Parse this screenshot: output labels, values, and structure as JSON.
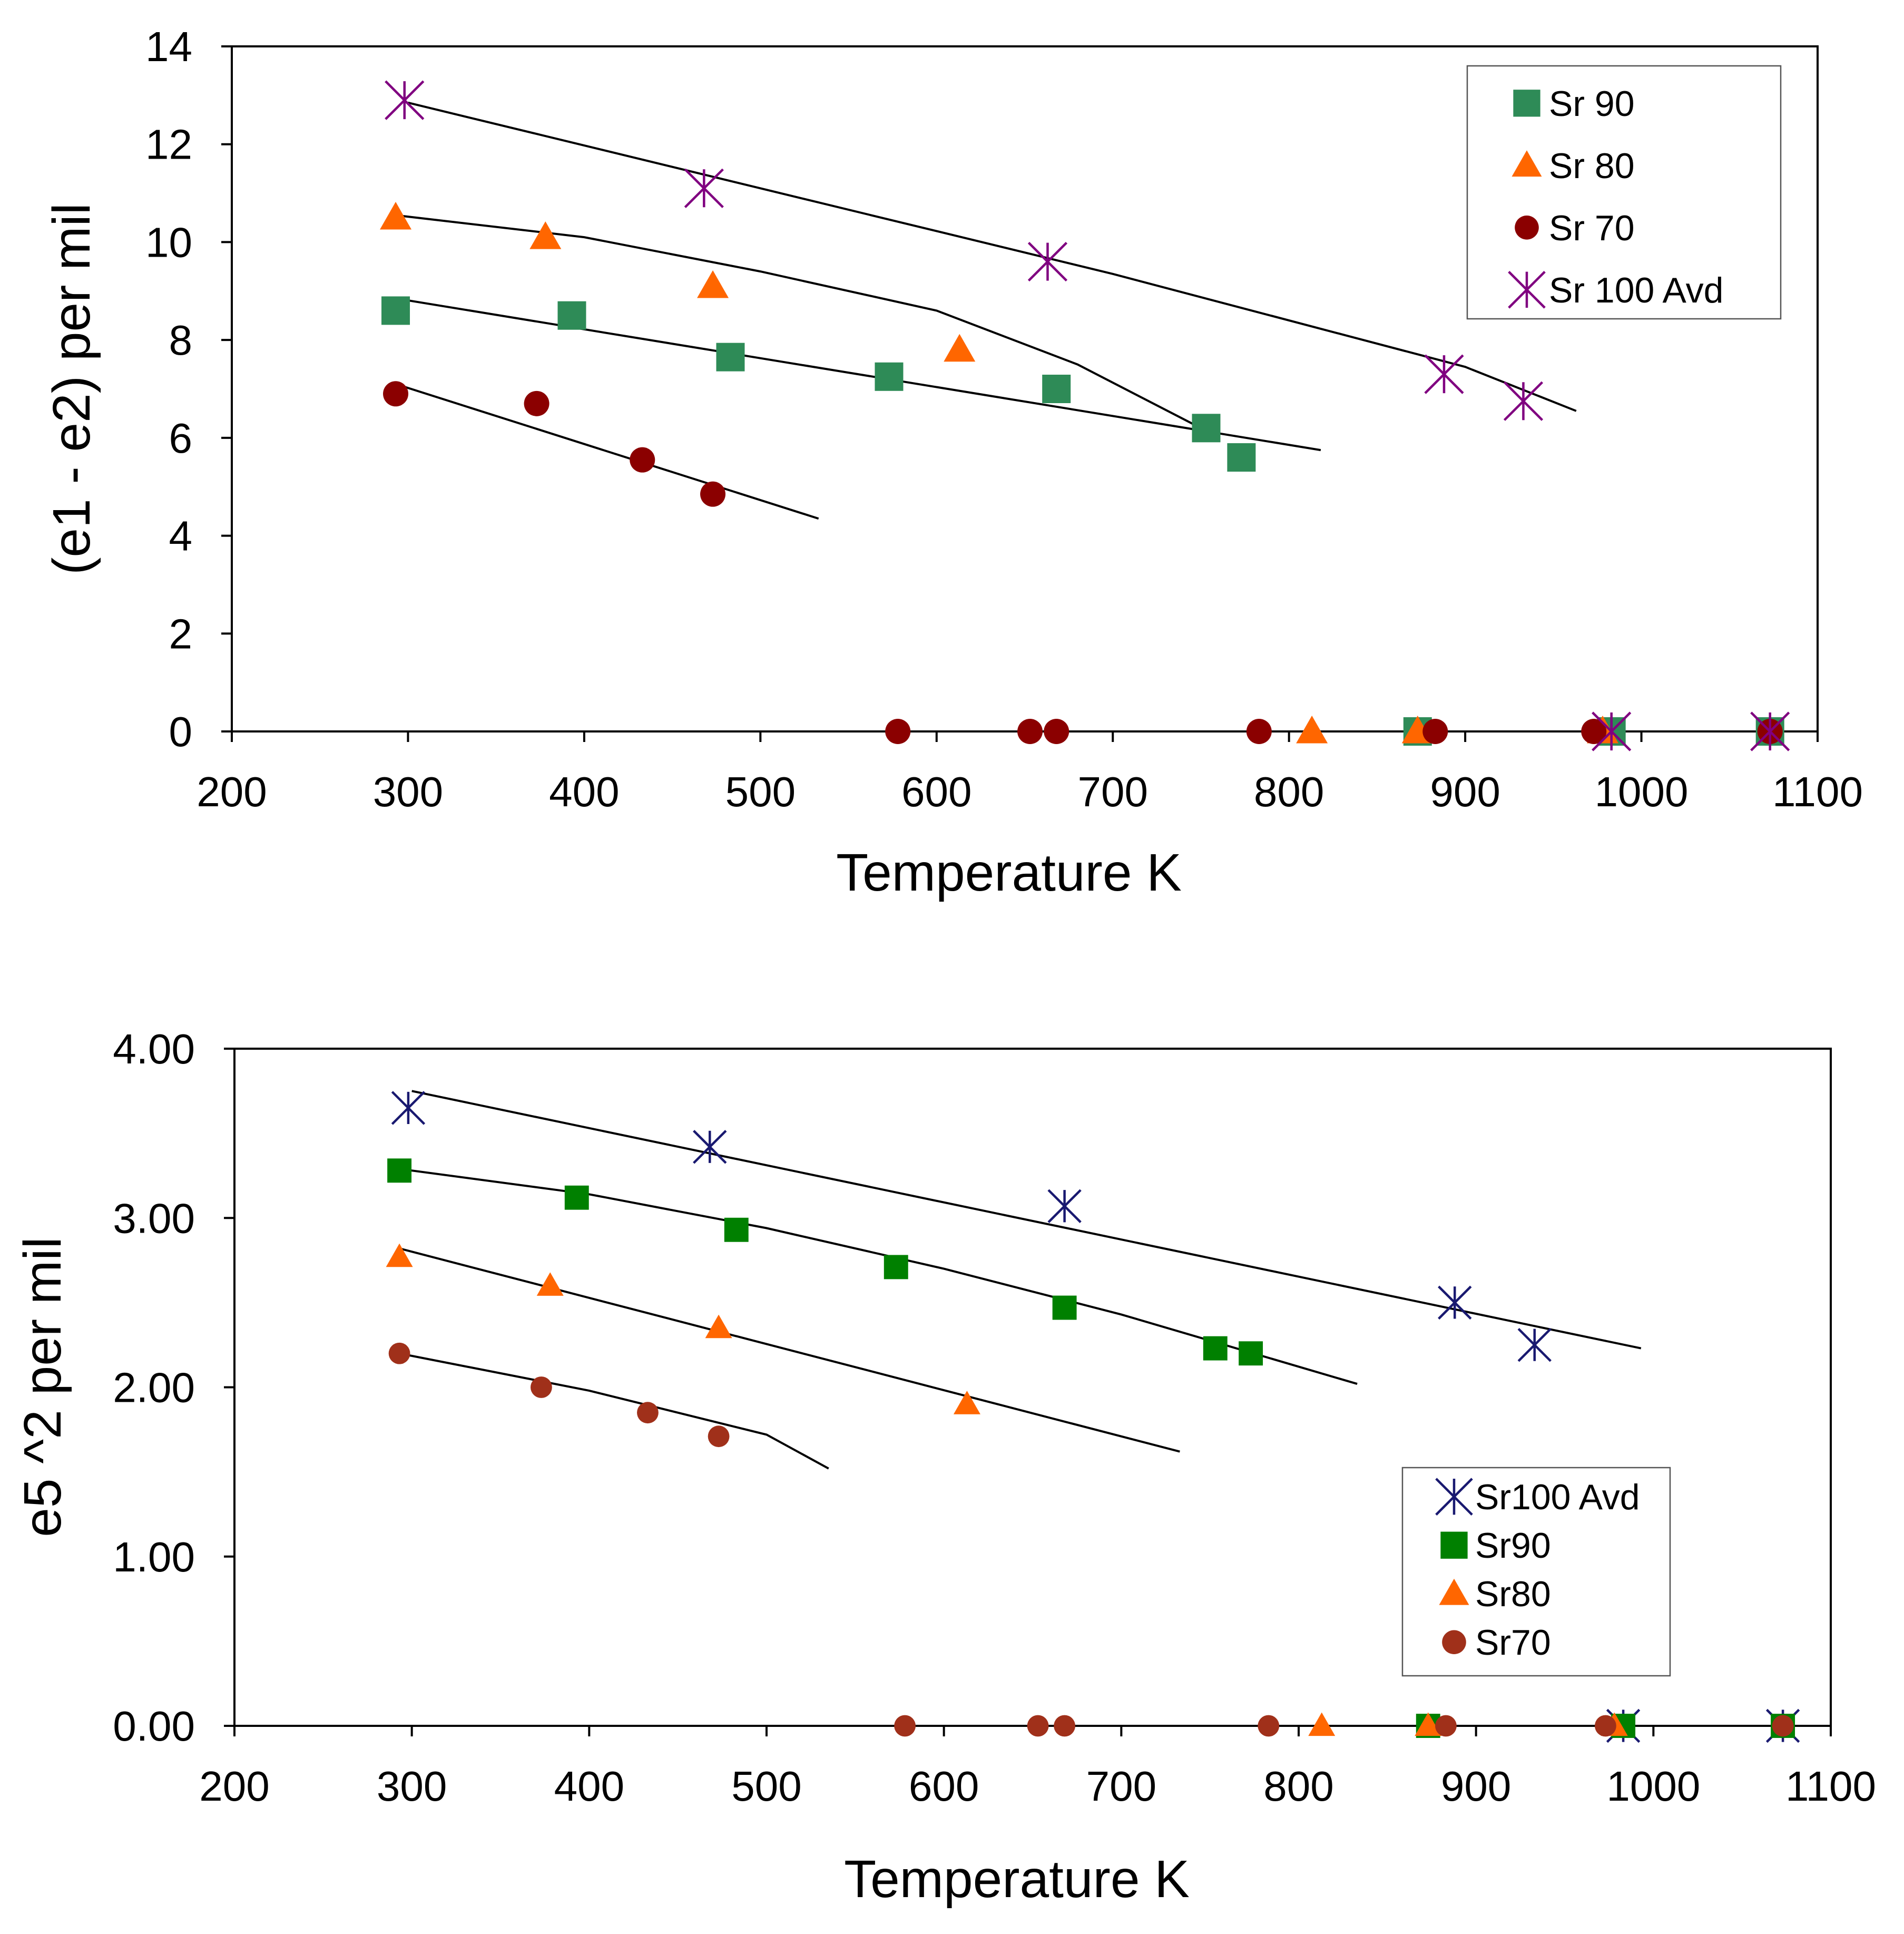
{
  "chart_data": [
    {
      "type": "scatter",
      "title": "",
      "xlabel": "Temperature K",
      "ylabel": "(e1 - e2) per mil",
      "xlim": [
        200,
        1100
      ],
      "ylim": [
        0,
        14
      ],
      "x_ticks": [
        "200",
        "300",
        "400",
        "500",
        "600",
        "700",
        "800",
        "900",
        "1000",
        "1100"
      ],
      "y_ticks": [
        "0",
        "2",
        "4",
        "6",
        "8",
        "10",
        "12",
        "14"
      ],
      "grid": false,
      "legend_position": "top-right",
      "legend": [
        "Sr 90",
        "Sr 80",
        "Sr 70",
        "Sr 100 Avd"
      ],
      "series": [
        {
          "name": "Sr 90",
          "marker": "square",
          "color": "#2e8b57",
          "points": [
            [
              293,
              8.6
            ],
            [
              393,
              8.5
            ],
            [
              483,
              7.65
            ],
            [
              573,
              7.25
            ],
            [
              668,
              7.0
            ],
            [
              753,
              6.2
            ],
            [
              773,
              5.6
            ],
            [
              873,
              0
            ],
            [
              983,
              0
            ],
            [
              1073,
              0
            ]
          ],
          "fit": [
            [
              293,
              8.85
            ],
            [
              818,
              5.75
            ]
          ]
        },
        {
          "name": "Sr 80",
          "marker": "triangle",
          "color": "#ff6600",
          "points": [
            [
              293,
              10.5
            ],
            [
              378,
              10.1
            ],
            [
              473,
              9.1
            ],
            [
              613,
              7.8
            ],
            [
              813,
              0
            ],
            [
              873,
              0
            ],
            [
              978,
              0
            ]
          ],
          "fit": [
            [
              293,
              10.55
            ],
            [
              400,
              10.1
            ],
            [
              500,
              9.4
            ],
            [
              600,
              8.6
            ],
            [
              680,
              7.5
            ],
            [
              750,
              6.2
            ]
          ]
        },
        {
          "name": "Sr 70",
          "marker": "circle",
          "color": "#8b0000",
          "points": [
            [
              293,
              6.9
            ],
            [
              373,
              6.7
            ],
            [
              433,
              5.55
            ],
            [
              473,
              4.85
            ],
            [
              578,
              0
            ],
            [
              653,
              0
            ],
            [
              668,
              0
            ],
            [
              783,
              0
            ],
            [
              883,
              0
            ],
            [
              973,
              0
            ],
            [
              1073,
              0
            ]
          ],
          "fit": [
            [
              293,
              7.1
            ],
            [
              533,
              4.35
            ]
          ]
        },
        {
          "name": "Sr 100 Avd",
          "marker": "asterisk",
          "color": "#800080",
          "points": [
            [
              298,
              12.9
            ],
            [
              468,
              11.1
            ],
            [
              663,
              9.6
            ],
            [
              888,
              7.3
            ],
            [
              933,
              6.75
            ],
            [
              983,
              0
            ],
            [
              1073,
              0
            ]
          ],
          "fit": [
            [
              300,
              12.85
            ],
            [
              500,
              11.1
            ],
            [
              700,
              9.35
            ],
            [
              900,
              7.45
            ],
            [
              963,
              6.55
            ]
          ]
        }
      ]
    },
    {
      "type": "scatter",
      "title": "",
      "xlabel": "Temperature K",
      "ylabel": "e5 ^2   per mil",
      "xlim": [
        200,
        1100
      ],
      "ylim": [
        0,
        4
      ],
      "x_ticks": [
        "200",
        "300",
        "400",
        "500",
        "600",
        "700",
        "800",
        "900",
        "1000",
        "1100"
      ],
      "y_ticks": [
        "0.00",
        "1.00",
        "2.00",
        "3.00",
        "4.00"
      ],
      "grid": false,
      "legend_position": "lower-right",
      "legend": [
        "Sr100 Avd",
        "Sr90",
        "Sr80",
        "Sr70"
      ],
      "series": [
        {
          "name": "Sr100 Avd",
          "marker": "asterisk",
          "color": "#191970",
          "points": [
            [
              298,
              3.65
            ],
            [
              468,
              3.42
            ],
            [
              668,
              3.07
            ],
            [
              888,
              2.5
            ],
            [
              933,
              2.25
            ],
            [
              983,
              0
            ],
            [
              1073,
              0
            ]
          ],
          "fit": [
            [
              300,
              3.75
            ],
            [
              993,
              2.23
            ]
          ]
        },
        {
          "name": "Sr90",
          "marker": "square",
          "color": "#008000",
          "points": [
            [
              293,
              3.28
            ],
            [
              393,
              3.12
            ],
            [
              483,
              2.93
            ],
            [
              573,
              2.71
            ],
            [
              668,
              2.47
            ],
            [
              753,
              2.23
            ],
            [
              773,
              2.2
            ],
            [
              873,
              0
            ],
            [
              983,
              0
            ],
            [
              1073,
              0
            ]
          ],
          "fit": [
            [
              293,
              3.29
            ],
            [
              400,
              3.14
            ],
            [
              500,
              2.94
            ],
            [
              600,
              2.7
            ],
            [
              700,
              2.43
            ],
            [
              833,
              2.02
            ]
          ]
        },
        {
          "name": "Sr80",
          "marker": "triangle",
          "color": "#ff6600",
          "points": [
            [
              293,
              2.77
            ],
            [
              378,
              2.6
            ],
            [
              473,
              2.35
            ],
            [
              613,
              1.9
            ],
            [
              813,
              0
            ],
            [
              873,
              0
            ],
            [
              978,
              0
            ]
          ],
          "fit": [
            [
              293,
              2.82
            ],
            [
              733,
              1.62
            ]
          ]
        },
        {
          "name": "Sr70",
          "marker": "circle",
          "color": "#a0301a",
          "points": [
            [
              293,
              2.2
            ],
            [
              373,
              2.0
            ],
            [
              433,
              1.85
            ],
            [
              473,
              1.71
            ],
            [
              578,
              0
            ],
            [
              653,
              0
            ],
            [
              668,
              0
            ],
            [
              783,
              0
            ],
            [
              883,
              0
            ],
            [
              973,
              0
            ],
            [
              1073,
              0
            ]
          ],
          "fit": [
            [
              293,
              2.2
            ],
            [
              400,
              1.98
            ],
            [
              500,
              1.72
            ],
            [
              535,
              1.52
            ]
          ]
        }
      ]
    }
  ]
}
